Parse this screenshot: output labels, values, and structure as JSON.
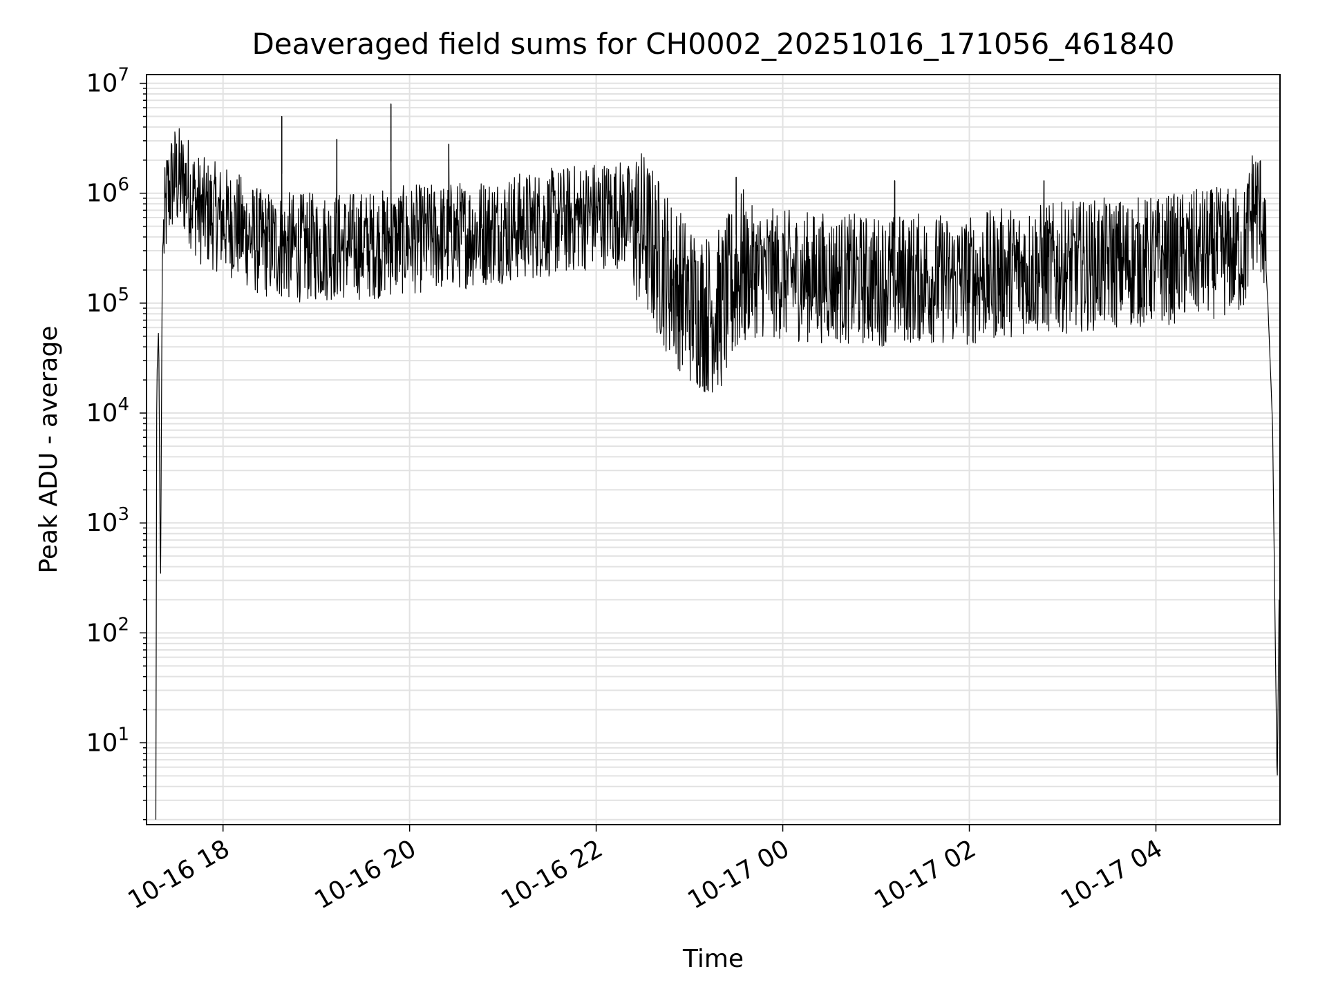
{
  "chart_data": {
    "type": "line",
    "title": "Deaveraged field sums for CH0002_20251016_171056_461840",
    "xlabel": "Time",
    "ylabel": "Peak ADU - average",
    "yscale": "log",
    "ylim": [
      1.8,
      12000000
    ],
    "y_tick_values": [
      10,
      100,
      1000,
      10000,
      100000,
      1000000,
      10000000
    ],
    "y_tick_labels": [
      {
        "base": "10",
        "exp": "1"
      },
      {
        "base": "10",
        "exp": "2"
      },
      {
        "base": "10",
        "exp": "3"
      },
      {
        "base": "10",
        "exp": "4"
      },
      {
        "base": "10",
        "exp": "5"
      },
      {
        "base": "10",
        "exp": "6"
      },
      {
        "base": "10",
        "exp": "7"
      }
    ],
    "x_unit": "hours since 2025-10-16 00:00",
    "xlim": [
      17.18,
      29.33
    ],
    "x_ticks": [
      {
        "value": 18,
        "label": "10-16 18"
      },
      {
        "value": 20,
        "label": "10-16 20"
      },
      {
        "value": 22,
        "label": "10-16 22"
      },
      {
        "value": 24,
        "label": "10-17 00"
      },
      {
        "value": 26,
        "label": "10-17 02"
      },
      {
        "value": 28,
        "label": "10-17 04"
      }
    ],
    "grid": true,
    "line_color": "#000000",
    "grid_color": "#e2e2e2",
    "series": [
      {
        "name": "deaveraged field sum",
        "baseline_points": [
          [
            17.28,
            2
          ],
          [
            17.29,
            20000
          ],
          [
            17.31,
            60000
          ],
          [
            17.33,
            250
          ],
          [
            17.35,
            300000
          ],
          [
            17.4,
            900000
          ],
          [
            17.47,
            1400000
          ],
          [
            17.6,
            1200000
          ],
          [
            17.75,
            700000
          ],
          [
            17.95,
            600000
          ],
          [
            18.15,
            500000
          ],
          [
            18.4,
            350000
          ],
          [
            18.8,
            320000
          ],
          [
            19.2,
            330000
          ],
          [
            19.6,
            340000
          ],
          [
            20.0,
            380000
          ],
          [
            20.4,
            400000
          ],
          [
            20.8,
            450000
          ],
          [
            21.2,
            500000
          ],
          [
            21.6,
            550000
          ],
          [
            22.0,
            650000
          ],
          [
            22.3,
            650000
          ],
          [
            22.5,
            450000
          ],
          [
            22.75,
            200000
          ],
          [
            23.0,
            100000
          ],
          [
            23.2,
            80000
          ],
          [
            23.35,
            90000
          ],
          [
            23.55,
            200000
          ],
          [
            24.0,
            180000
          ],
          [
            24.5,
            170000
          ],
          [
            25.0,
            160000
          ],
          [
            25.5,
            170000
          ],
          [
            26.0,
            160000
          ],
          [
            26.5,
            200000
          ],
          [
            27.0,
            210000
          ],
          [
            27.5,
            230000
          ],
          [
            28.0,
            240000
          ],
          [
            28.5,
            280000
          ],
          [
            28.95,
            300000
          ],
          [
            29.05,
            800000
          ],
          [
            29.15,
            600000
          ],
          [
            29.2,
            100000
          ],
          [
            29.25,
            8000
          ],
          [
            29.3,
            3.8
          ],
          [
            29.32,
            200
          ]
        ],
        "spikes": [
          [
            18.63,
            5000000
          ],
          [
            19.22,
            3100000
          ],
          [
            19.8,
            6500000
          ],
          [
            20.42,
            2800000
          ],
          [
            22.45,
            1500000
          ],
          [
            23.5,
            1400000
          ],
          [
            25.2,
            1300000
          ],
          [
            26.8,
            1300000
          ],
          [
            29.03,
            1500000
          ]
        ]
      }
    ]
  }
}
